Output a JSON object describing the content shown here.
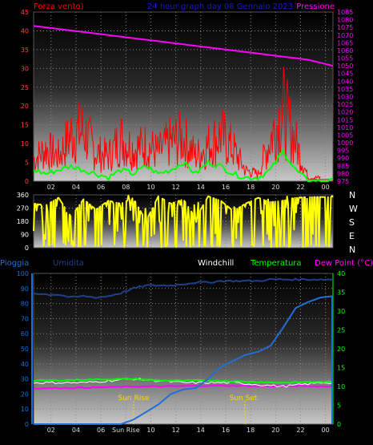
{
  "colors": {
    "wind": "#ff0000",
    "gust_avg": "#00ff00",
    "pressure": "#ff00ff",
    "wind_dir": "#ffff00",
    "rain": "#1f6fd6",
    "humidity": "#1e3f8a",
    "windchill": "#ffffff",
    "temperature": "#00ff00",
    "dew_point": "#ff00ff",
    "sun_marker": "#ffd700",
    "axis_blue": "#1f6fd6"
  },
  "panel1": {
    "left_title": "Forza vento)",
    "center_title": "24 hour graph day  08 Gennaio 2023",
    "right_title": "Pressione"
  },
  "panel3": {
    "labels": {
      "rain": "Pioggia",
      "humidity": "Umidita",
      "windchill": "Windchill",
      "temperature": "Temperatura",
      "dew_point": "Dew Point (°C)"
    },
    "sunrise_label": "Sun Rise",
    "sunset_label": "Sun Set",
    "sunrise_tick": "Sun Rise"
  },
  "direction_letters": [
    "N",
    "W",
    "S",
    "E",
    "N"
  ],
  "chart_data": [
    {
      "type": "line",
      "title": "24 hour graph day  08 Gennaio 2023",
      "ylabel": "Forza vento)",
      "y2label": "Pressione",
      "x_ticks": [
        "02",
        "04",
        "06",
        "08",
        "10",
        "12",
        "14",
        "16",
        "18",
        "20",
        "22",
        "00"
      ],
      "ylim": [
        0,
        45
      ],
      "y_ticks": [
        0,
        5,
        10,
        15,
        20,
        25,
        30,
        35,
        40,
        45
      ],
      "y2lim": [
        975,
        1085
      ],
      "y2_ticks": [
        975,
        980,
        985,
        990,
        995,
        1000,
        1005,
        1010,
        1015,
        1020,
        1025,
        1030,
        1035,
        1040,
        1045,
        1050,
        1055,
        1060,
        1065,
        1070,
        1075,
        1080,
        1085
      ],
      "grid": true,
      "series": [
        {
          "values_hours": [
            0,
            1,
            2,
            3,
            4,
            5,
            6,
            7,
            8,
            9,
            10,
            11,
            12,
            13,
            14,
            15,
            16,
            17,
            18,
            19,
            20,
            21,
            22,
            23,
            24
          ],
          "values": [
            1076,
            1075,
            1074,
            1073,
            1072,
            1071,
            1070,
            1069,
            1068,
            1067,
            1066,
            1065,
            1064,
            1063,
            1062,
            1061,
            1060,
            1059,
            1058,
            1057,
            1056,
            1055,
            1054,
            1052,
            1050
          ]
        },
        {
          "values_hours": [
            0,
            1,
            2,
            3,
            4,
            5,
            6,
            7,
            8,
            9,
            10,
            11,
            12,
            13,
            14,
            15,
            16,
            17,
            18,
            19,
            20,
            21,
            22,
            23
          ],
          "values": [
            6,
            9,
            7,
            13,
            14,
            8,
            7,
            12,
            9,
            10,
            8,
            11,
            12,
            7,
            10,
            13,
            9,
            3,
            2,
            12,
            20,
            11,
            1,
            1
          ]
        },
        {
          "values_hours": [
            0,
            1,
            2,
            3,
            4,
            5,
            6,
            7,
            8,
            9,
            10,
            11,
            12,
            13,
            14,
            15,
            16,
            17,
            18,
            19,
            20,
            21,
            22,
            23
          ],
          "values": [
            3,
            2,
            3,
            4,
            3,
            2,
            1,
            3,
            2,
            4,
            2,
            3,
            5,
            2,
            5,
            4,
            2,
            1,
            1,
            3,
            8,
            3,
            0,
            0
          ]
        }
      ]
    },
    {
      "type": "line",
      "ylabel": "",
      "ylim": [
        0,
        360
      ],
      "y_ticks": [
        0,
        90,
        180,
        270,
        360
      ],
      "grid": true,
      "series": [
        {
          "values_hours": [
            0,
            1,
            2,
            3,
            4,
            5,
            6,
            7,
            8,
            9,
            10,
            11,
            12,
            13,
            14,
            15,
            16,
            17,
            18,
            19,
            20,
            21,
            22,
            23
          ],
          "values": [
            300,
            290,
            340,
            210,
            330,
            260,
            320,
            300,
            340,
            180,
            350,
            300,
            330,
            200,
            350,
            320,
            250,
            300,
            340,
            310,
            320,
            340,
            345,
            345
          ]
        }
      ]
    },
    {
      "type": "line",
      "x_ticks": [
        "02",
        "04",
        "06",
        "Sun Rise",
        "10",
        "12",
        "14",
        "16",
        "18",
        "20",
        "22",
        "00"
      ],
      "ylim": [
        0,
        100
      ],
      "y_ticks": [
        0,
        10,
        20,
        30,
        40,
        50,
        60,
        70,
        80,
        90,
        100
      ],
      "y2lim": [
        0,
        40
      ],
      "y2_ticks": [
        0,
        5,
        10,
        15,
        20,
        25,
        30,
        35,
        40
      ],
      "grid": true,
      "series": [
        {
          "name": "Pioggia",
          "values_hours": [
            0,
            6,
            7,
            8,
            9,
            10,
            11,
            12,
            13,
            14,
            15,
            16,
            17,
            18,
            19,
            20,
            21,
            22,
            23,
            24
          ],
          "values": [
            0,
            0,
            0,
            3,
            8,
            13,
            20,
            23,
            24,
            30,
            38,
            42,
            46,
            48,
            52,
            64,
            77,
            81,
            84,
            85
          ]
        },
        {
          "name": "Umidita",
          "values_hours": [
            0,
            1,
            2,
            3,
            4,
            5,
            6,
            7,
            8,
            9,
            10,
            11,
            12,
            13,
            14,
            15,
            16,
            17,
            18,
            19,
            20,
            21,
            22,
            23,
            24
          ],
          "values": [
            87,
            86,
            86,
            84,
            85,
            84,
            85,
            87,
            90,
            92,
            92,
            92,
            93,
            94,
            94,
            95,
            95,
            95,
            95,
            96,
            96,
            96,
            96,
            96,
            96
          ]
        },
        {
          "name": "Windchill",
          "values_hours": [
            0,
            4,
            8,
            12,
            16,
            20,
            23
          ],
          "values": [
            11,
            11,
            12,
            11,
            11,
            10,
            11
          ]
        },
        {
          "name": "Temperatura",
          "values_hours": [
            0,
            2,
            4,
            6,
            8,
            10,
            12,
            14,
            16,
            18,
            20,
            22,
            24
          ],
          "values": [
            11.5,
            11.6,
            11.8,
            11.9,
            12,
            11.6,
            11.5,
            11.6,
            11.4,
            11.2,
            11,
            11.2,
            11.2
          ]
        },
        {
          "name": "Dew Point (°C)",
          "values_hours": [
            0,
            2,
            4,
            6,
            8,
            10,
            12,
            14,
            16,
            18,
            20,
            22,
            24
          ],
          "values": [
            9.5,
            9.6,
            9.7,
            9.8,
            10,
            10,
            10.1,
            10.2,
            10.2,
            10.1,
            10.1,
            10.1,
            10
          ]
        }
      ]
    }
  ]
}
